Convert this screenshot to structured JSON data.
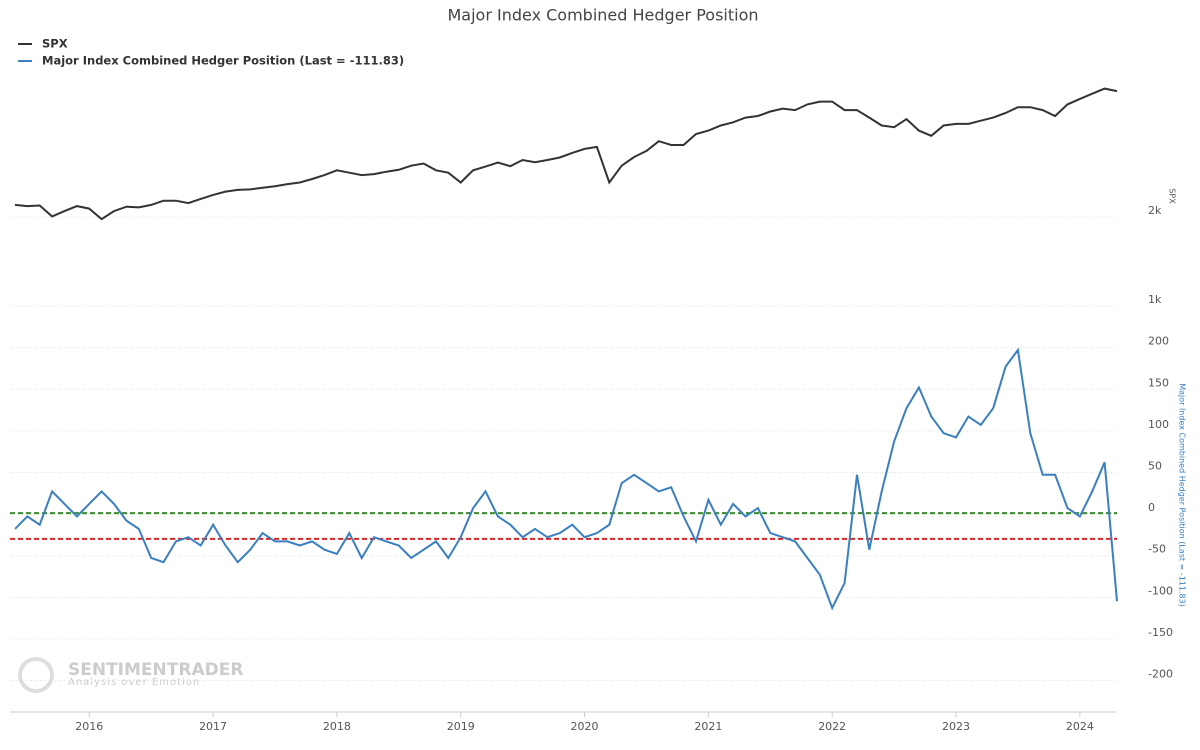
{
  "chart_data": {
    "type": "line",
    "title": "Major Index Combined Hedger Position",
    "x": [
      2015.4,
      2015.5,
      2015.6,
      2015.7,
      2015.8,
      2015.9,
      2016.0,
      2016.1,
      2016.2,
      2016.3,
      2016.4,
      2016.5,
      2016.6,
      2016.7,
      2016.8,
      2016.9,
      2017.0,
      2017.1,
      2017.2,
      2017.3,
      2017.4,
      2017.5,
      2017.6,
      2017.7,
      2017.8,
      2017.9,
      2018.0,
      2018.1,
      2018.2,
      2018.3,
      2018.4,
      2018.5,
      2018.6,
      2018.7,
      2018.8,
      2018.9,
      2019.0,
      2019.1,
      2019.2,
      2019.3,
      2019.4,
      2019.5,
      2019.6,
      2019.7,
      2019.8,
      2019.9,
      2020.0,
      2020.1,
      2020.2,
      2020.3,
      2020.4,
      2020.5,
      2020.6,
      2020.7,
      2020.8,
      2020.9,
      2021.0,
      2021.1,
      2021.2,
      2021.3,
      2021.4,
      2021.5,
      2021.6,
      2021.7,
      2021.8,
      2021.9,
      2022.0,
      2022.1,
      2022.2,
      2022.3,
      2022.4,
      2022.5,
      2022.6,
      2022.7,
      2022.8,
      2022.9,
      2023.0,
      2023.1,
      2023.2,
      2023.3,
      2023.4,
      2023.5,
      2023.6,
      2023.7,
      2023.8,
      2023.9,
      2024.0,
      2024.1,
      2024.2,
      2024.3
    ],
    "series": [
      {
        "name": "SPX",
        "color": "#333333",
        "axis": "y",
        "values": [
          2100,
          2080,
          2090,
          1920,
          2000,
          2080,
          2040,
          1880,
          2000,
          2070,
          2060,
          2100,
          2170,
          2170,
          2130,
          2200,
          2270,
          2330,
          2360,
          2370,
          2400,
          2430,
          2470,
          2500,
          2570,
          2650,
          2750,
          2700,
          2650,
          2670,
          2720,
          2760,
          2850,
          2900,
          2750,
          2700,
          2500,
          2750,
          2830,
          2920,
          2840,
          2980,
          2930,
          2980,
          3040,
          3150,
          3250,
          3300,
          2500,
          2850,
          3050,
          3200,
          3450,
          3350,
          3350,
          3650,
          3750,
          3900,
          4000,
          4150,
          4200,
          4350,
          4450,
          4400,
          4600,
          4700,
          4700,
          4400,
          4400,
          4150,
          3900,
          3850,
          4100,
          3750,
          3600,
          3900,
          3950,
          3950,
          4050,
          4150,
          4300,
          4500,
          4500,
          4400,
          4200,
          4600,
          4800,
          5000,
          5200,
          5100
        ]
      },
      {
        "name": "Major Index Combined Hedger Position (Last = -111.83)",
        "color": "#3a7fc0",
        "axis": "y2",
        "values": [
          -25,
          -10,
          -20,
          20,
          5,
          -10,
          5,
          20,
          5,
          -15,
          -25,
          -60,
          -65,
          -40,
          -35,
          -45,
          -20,
          -45,
          -65,
          -50,
          -30,
          -40,
          -40,
          -45,
          -40,
          -50,
          -55,
          -30,
          -60,
          -35,
          -40,
          -45,
          -60,
          -50,
          -40,
          -60,
          -35,
          0,
          20,
          -10,
          -20,
          -35,
          -25,
          -35,
          -30,
          -20,
          -35,
          -30,
          -20,
          30,
          40,
          30,
          20,
          25,
          -10,
          -40,
          10,
          -20,
          5,
          -10,
          0,
          -30,
          -35,
          -40,
          -60,
          -80,
          -120,
          -90,
          40,
          -50,
          20,
          80,
          120,
          145,
          110,
          90,
          85,
          110,
          100,
          120,
          170,
          190,
          90,
          40,
          40,
          0,
          -10,
          20,
          55,
          -111.83
        ]
      }
    ],
    "xlim": [
      2015.36,
      2024.3
    ],
    "xticks": [
      2016,
      2017,
      2018,
      2019,
      2020,
      2021,
      2022,
      2023,
      2024
    ],
    "ylim": [
      1000,
      5350
    ],
    "ylog": true,
    "yticks": [
      {
        "value": 1000,
        "label": "1k"
      },
      {
        "value": 2000,
        "label": "2k"
      }
    ],
    "ylabel": "SPX",
    "y2lim": [
      -245,
      226
    ],
    "y2ticks": [
      -200,
      -150,
      -100,
      -50,
      0,
      50,
      100,
      150,
      200
    ],
    "y2label": "Major Index Combined Hedger Position (Last = -111.83)",
    "hlines": [
      {
        "value": -6,
        "color": "#3a8a2e"
      },
      {
        "value": -37,
        "color": "#d62728"
      }
    ],
    "grid": true,
    "legend": "top-left",
    "watermark": {
      "name": "SENTIMENTRADER",
      "tagline": "Analysis over Emotion"
    }
  }
}
